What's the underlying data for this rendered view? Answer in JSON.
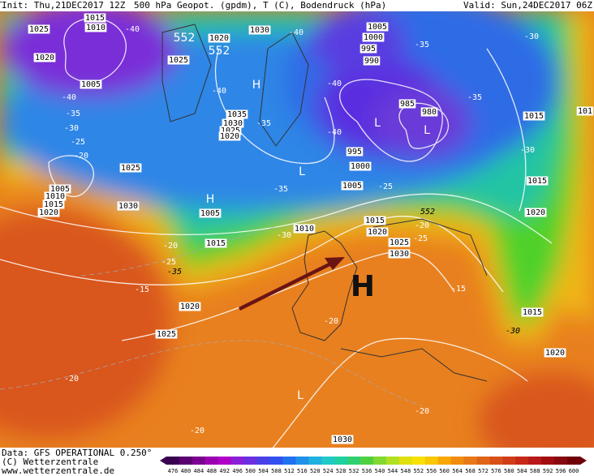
{
  "header": {
    "init": "Init: Thu,21DEC2017 12Z",
    "title": "500 hPa Geopot. (gpdm), T (C), Bodendruck (hPa)",
    "valid": "Valid: Sun,24DEC2017 06Z"
  },
  "footer": {
    "data": "Data: GFS OPERATIONAL 0.250°",
    "copyright": "(C) Wetterzentrale",
    "url": "www.wetterzentrale.de"
  },
  "colorbar": {
    "labels": [
      476,
      480,
      484,
      488,
      492,
      496,
      500,
      504,
      508,
      512,
      516,
      520,
      524,
      528,
      532,
      536,
      540,
      544,
      548,
      552,
      556,
      560,
      564,
      568,
      572,
      576,
      580,
      584,
      588,
      592,
      596,
      600
    ]
  },
  "map": {
    "labels": [
      "1015",
      "1010",
      "1025",
      "1020",
      "1025",
      "1020",
      "1030",
      "1005",
      "1035",
      "1030",
      "1025",
      "1020",
      "1025",
      "1005",
      "1010",
      "1015",
      "1020",
      "1030",
      "1005",
      "1015",
      "1020",
      "1025",
      "1005",
      "1000",
      "995",
      "990",
      "985",
      "980",
      "995",
      "1000",
      "1005",
      "1010",
      "1015",
      "1020",
      "1025",
      "1030",
      "1015",
      "1015",
      "1020",
      "1015",
      "1020",
      "1030",
      "101",
      "-40",
      "-40",
      "-35",
      "-30",
      "-25",
      "-20",
      "-40",
      "-40",
      "-35",
      "-40",
      "-40",
      "-35",
      "-35",
      "-30",
      "-35",
      "-30",
      "-25",
      "-20",
      "-30",
      "-25",
      "-20",
      "-20",
      "-20",
      "-20",
      "-15",
      "-15",
      "-20",
      "-25",
      "-35",
      "-30",
      "552",
      "552",
      "552",
      "H",
      "L",
      "H",
      "L",
      "L",
      "H",
      "L",
      "H",
      "L"
    ]
  }
}
